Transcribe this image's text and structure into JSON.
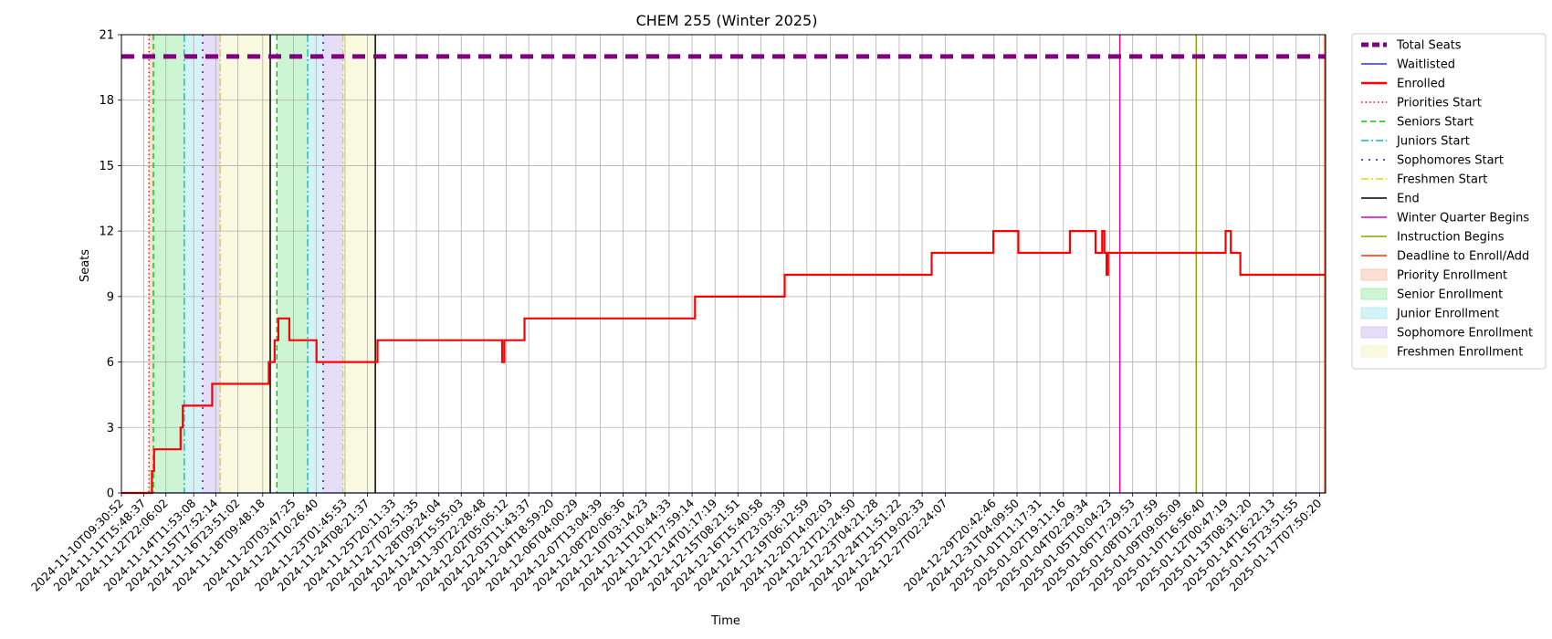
{
  "chart_data": {
    "type": "line",
    "title": "CHEM 255 (Winter 2025)",
    "xlabel": "Time",
    "ylabel": "Seats",
    "ylim": [
      0,
      21
    ],
    "yticks": [
      0,
      3,
      6,
      9,
      12,
      15,
      18,
      21
    ],
    "grid": true,
    "legend_position": "outside-right",
    "xticks": [
      "2024-11-10T09:30:52",
      "2024-11-11T15:48:37",
      "2024-11-12T22:06:02",
      "2024-11-14T11:53:08",
      "2024-11-15T17:52:14",
      "2024-11-16T23:51:02",
      "2024-11-18T09:48:18",
      "2024-11-20T03:47:25",
      "2024-11-21T10:26:40",
      "2024-11-23T01:45:53",
      "2024-11-24T08:21:37",
      "2024-11-25T20:11:33",
      "2024-11-27T02:51:35",
      "2024-11-28T09:24:04",
      "2024-11-29T15:55:03",
      "2024-11-30T22:28:48",
      "2024-12-02T05:05:12",
      "2024-12-03T11:43:37",
      "2024-12-04T18:59:20",
      "2024-12-06T04:00:29",
      "2024-12-07T13:04:39",
      "2024-12-08T20:06:36",
      "2024-12-10T03:14:23",
      "2024-12-11T10:44:33",
      "2024-12-12T17:59:14",
      "2024-12-14T01:17:19",
      "2024-12-15T08:21:51",
      "2024-12-16T15:40:58",
      "2024-12-17T23:03:39",
      "2024-12-19T06:12:59",
      "2024-12-20T14:02:03",
      "2024-12-21T21:24:50",
      "2024-12-23T04:21:28",
      "2024-12-24T11:51:22",
      "2024-12-25T19:02:33",
      "2024-12-27T02:24:07",
      "2024-12-29T20:42:46",
      "2024-12-31T04:09:50",
      "2025-01-01T11:17:31",
      "2025-01-02T19:11:16",
      "2025-01-04T02:29:34",
      "2025-01-05T10:04:23",
      "2025-01-06T17:29:53",
      "2025-01-08T01:27:59",
      "2025-01-09T09:05:09",
      "2025-01-10T16:56:40",
      "2025-01-12T00:47:19",
      "2025-01-13T08:31:20",
      "2025-01-14T16:22:13",
      "2025-01-15T23:51:55",
      "2025-01-17T07:50:20"
    ],
    "x_range": [
      "2024-11-10T09:30:52",
      "2025-01-17T16:00:00"
    ],
    "series": [
      {
        "name": "Total Seats",
        "color": "#800080",
        "style": "dashed",
        "points": [
          [
            "2024-11-10T09:30:52",
            20
          ],
          [
            "2025-01-17T16:00:00",
            20
          ]
        ]
      },
      {
        "name": "Waitlisted",
        "color": "#0000ff",
        "style": "solid",
        "points": [
          [
            "2024-11-10T09:30:52",
            0
          ],
          [
            "2025-01-17T16:00:00",
            0
          ]
        ]
      },
      {
        "name": "Enrolled",
        "color": "#ff0000",
        "style": "solid",
        "points": [
          [
            "2024-11-10T09:30:52",
            0
          ],
          [
            "2024-11-12T03:00:00",
            0
          ],
          [
            "2024-11-12T03:00:00",
            1
          ],
          [
            "2024-11-12T06:00:00",
            1
          ],
          [
            "2024-11-12T06:00:00",
            2
          ],
          [
            "2024-11-13T18:00:00",
            2
          ],
          [
            "2024-11-13T18:00:00",
            3
          ],
          [
            "2024-11-13T21:00:00",
            3
          ],
          [
            "2024-11-13T21:00:00",
            4
          ],
          [
            "2024-11-15T13:00:00",
            4
          ],
          [
            "2024-11-15T13:00:00",
            5
          ],
          [
            "2024-11-18T18:00:00",
            5
          ],
          [
            "2024-11-18T18:00:00",
            6
          ],
          [
            "2024-11-19T02:00:00",
            6
          ],
          [
            "2024-11-19T02:00:00",
            7
          ],
          [
            "2024-11-19T07:00:00",
            7
          ],
          [
            "2024-11-19T07:00:00",
            8
          ],
          [
            "2024-11-19T22:00:00",
            8
          ],
          [
            "2024-11-19T22:00:00",
            7
          ],
          [
            "2024-11-21T11:00:00",
            7
          ],
          [
            "2024-11-21T11:00:00",
            6
          ],
          [
            "2024-11-24T22:00:00",
            6
          ],
          [
            "2024-11-24T22:00:00",
            7
          ],
          [
            "2024-12-01T23:30:00",
            7
          ],
          [
            "2024-12-01T23:30:00",
            6
          ],
          [
            "2024-12-02T02:30:00",
            6
          ],
          [
            "2024-12-02T02:30:00",
            7
          ],
          [
            "2024-12-03T06:00:00",
            7
          ],
          [
            "2024-12-03T06:00:00",
            8
          ],
          [
            "2024-12-12T22:00:00",
            8
          ],
          [
            "2024-12-12T22:00:00",
            9
          ],
          [
            "2024-12-18T00:00:00",
            9
          ],
          [
            "2024-12-18T00:00:00",
            10
          ],
          [
            "2024-12-26T08:00:00",
            10
          ],
          [
            "2024-12-26T08:00:00",
            11
          ],
          [
            "2024-12-29T20:00:00",
            11
          ],
          [
            "2024-12-29T20:00:00",
            12
          ],
          [
            "2024-12-31T06:00:00",
            12
          ],
          [
            "2024-12-31T06:00:00",
            11
          ],
          [
            "2025-01-03T04:00:00",
            11
          ],
          [
            "2025-01-03T04:00:00",
            12
          ],
          [
            "2025-01-04T15:00:00",
            12
          ],
          [
            "2025-01-04T15:00:00",
            11
          ],
          [
            "2025-01-05T00:00:00",
            11
          ],
          [
            "2025-01-05T00:00:00",
            12
          ],
          [
            "2025-01-05T03:00:00",
            12
          ],
          [
            "2025-01-05T03:00:00",
            11
          ],
          [
            "2025-01-05T06:00:00",
            11
          ],
          [
            "2025-01-05T06:00:00",
            10
          ],
          [
            "2025-01-05T08:00:00",
            10
          ],
          [
            "2025-01-05T08:00:00",
            11
          ],
          [
            "2025-01-12T00:00:00",
            11
          ],
          [
            "2025-01-12T00:00:00",
            12
          ],
          [
            "2025-01-12T07:00:00",
            12
          ],
          [
            "2025-01-12T07:00:00",
            11
          ],
          [
            "2025-01-12T20:00:00",
            11
          ],
          [
            "2025-01-12T20:00:00",
            10
          ],
          [
            "2025-01-17T16:00:00",
            10
          ]
        ]
      }
    ],
    "vertical_markers": [
      {
        "name": "Priorities Start",
        "color": "#ff0000",
        "style": "dotted",
        "x": [
          "2024-11-11T23:00:00"
        ]
      },
      {
        "name": "Seniors Start",
        "color": "#00cc00",
        "style": "dashed",
        "x": [
          "2024-11-12T05:00:00",
          "2024-11-19T05:00:00"
        ]
      },
      {
        "name": "Juniors Start",
        "color": "#00bfbf",
        "style": "dashdot",
        "x": [
          "2024-11-13T23:00:00",
          "2024-11-20T23:00:00"
        ]
      },
      {
        "name": "Sophomores Start",
        "color": "#5500cc",
        "style": "dashdotdot",
        "x": [
          "2024-11-15T00:00:00",
          "2024-11-21T20:00:00"
        ]
      },
      {
        "name": "Freshmen Start",
        "color": "#e6d300",
        "style": "dashdot",
        "x": [
          "2024-11-16T00:00:00",
          "2024-11-22T23:00:00"
        ]
      },
      {
        "name": "End",
        "color": "#000000",
        "style": "solid",
        "x": [
          "2024-11-18T20:00:00",
          "2024-11-24T19:00:00"
        ]
      },
      {
        "name": "Winter Quarter Begins",
        "color": "#e000b0",
        "style": "solid",
        "x": [
          "2025-01-06T00:00:00"
        ]
      },
      {
        "name": "Instruction Begins",
        "color": "#8ca000",
        "style": "solid",
        "x": [
          "2025-01-10T08:00:00"
        ]
      },
      {
        "name": "Deadline to Enroll/Add",
        "color": "#ff3300",
        "style": "solid",
        "x": [
          "2025-01-17T15:00:00"
        ]
      }
    ],
    "shaded_regions": [
      {
        "name": "Priority Enrollment",
        "color": "#f4b79e",
        "spans": [
          [
            "2024-11-11T23:00:00",
            "2024-11-12T05:00:00"
          ]
        ]
      },
      {
        "name": "Senior Enrollment",
        "color": "#90e8a0",
        "spans": [
          [
            "2024-11-12T05:00:00",
            "2024-11-13T23:00:00"
          ],
          [
            "2024-11-19T05:00:00",
            "2024-11-20T23:00:00"
          ]
        ]
      },
      {
        "name": "Junior Enrollment",
        "color": "#a0e4ea",
        "spans": [
          [
            "2024-11-13T23:00:00",
            "2024-11-15T00:00:00"
          ],
          [
            "2024-11-20T23:00:00",
            "2024-11-21T20:00:00"
          ]
        ]
      },
      {
        "name": "Sophomore Enrollment",
        "color": "#c8b4f0",
        "spans": [
          [
            "2024-11-15T00:00:00",
            "2024-11-16T00:00:00"
          ],
          [
            "2024-11-21T20:00:00",
            "2024-11-22T23:00:00"
          ]
        ]
      },
      {
        "name": "Freshmen Enrollment",
        "color": "#f2f2b8",
        "spans": [
          [
            "2024-11-16T00:00:00",
            "2024-11-18T20:00:00"
          ],
          [
            "2024-11-22T23:00:00",
            "2024-11-24T19:00:00"
          ]
        ]
      }
    ],
    "legend": [
      {
        "label": "Total Seats",
        "kind": "line",
        "color": "#800080",
        "style": "dashed",
        "width": 5
      },
      {
        "label": "Waitlisted",
        "kind": "line",
        "color": "#0000ff",
        "style": "solid",
        "width": 1.3
      },
      {
        "label": "Enrolled",
        "kind": "line",
        "color": "#ff0000",
        "style": "solid",
        "width": 2.4
      },
      {
        "label": "Priorities Start",
        "kind": "line",
        "color": "#ff0000",
        "style": "dotted",
        "width": 1.5
      },
      {
        "label": "Seniors Start",
        "kind": "line",
        "color": "#00cc00",
        "style": "dashed",
        "width": 1.5
      },
      {
        "label": "Juniors Start",
        "kind": "line",
        "color": "#00bfbf",
        "style": "dashdot",
        "width": 1.5
      },
      {
        "label": "Sophomores Start",
        "kind": "line",
        "color": "#5500cc",
        "style": "dashdotdot",
        "width": 1.5
      },
      {
        "label": "Freshmen Start",
        "kind": "line",
        "color": "#e6d300",
        "style": "dashdot",
        "width": 1.5
      },
      {
        "label": "End",
        "kind": "line",
        "color": "#000000",
        "style": "solid",
        "width": 1.5
      },
      {
        "label": "Winter Quarter Begins",
        "kind": "line",
        "color": "#e000b0",
        "style": "solid",
        "width": 1.5
      },
      {
        "label": "Instruction Begins",
        "kind": "line",
        "color": "#8ca000",
        "style": "solid",
        "width": 1.5
      },
      {
        "label": "Deadline to Enroll/Add",
        "kind": "line",
        "color": "#ff3300",
        "style": "solid",
        "width": 1.5
      },
      {
        "label": "Priority Enrollment",
        "kind": "patch",
        "color": "#f4b79e"
      },
      {
        "label": "Senior Enrollment",
        "kind": "patch",
        "color": "#90e8a0"
      },
      {
        "label": "Junior Enrollment",
        "kind": "patch",
        "color": "#a0e4ea"
      },
      {
        "label": "Sophomore Enrollment",
        "kind": "patch",
        "color": "#c8b4f0"
      },
      {
        "label": "Freshmen Enrollment",
        "kind": "patch",
        "color": "#f2f2b8"
      }
    ]
  }
}
